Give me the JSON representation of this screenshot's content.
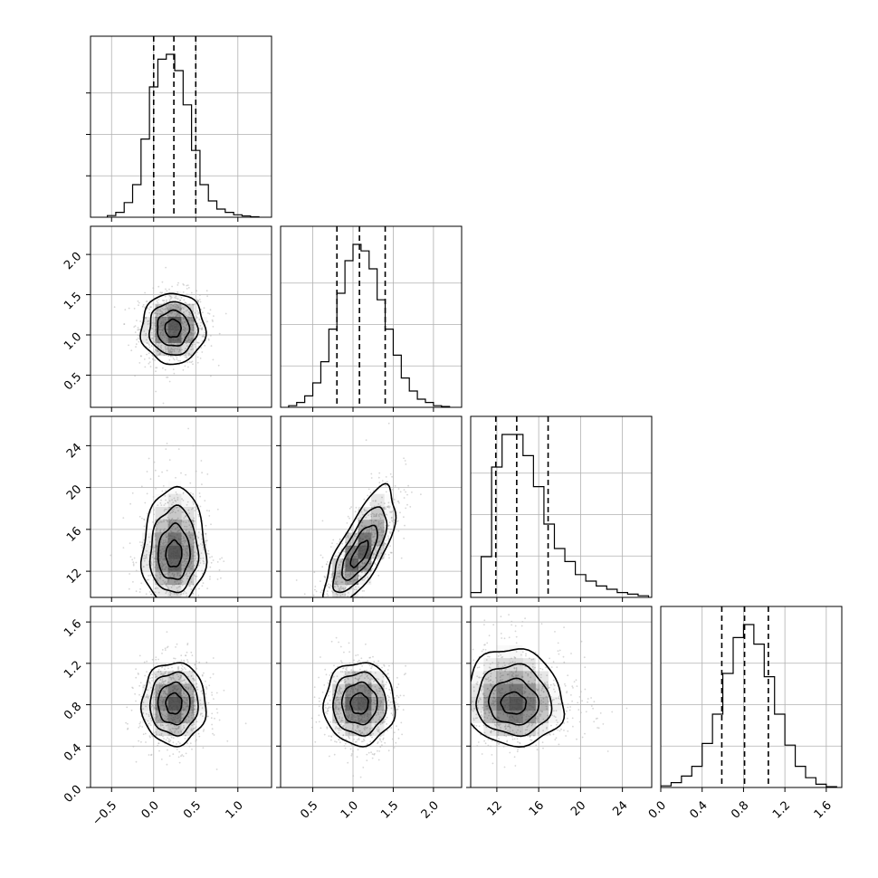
{
  "figure": {
    "kind": "corner-plot"
  },
  "chart_data": {
    "type": "corner",
    "title": "",
    "grid": true,
    "colors": {
      "line": "#000000",
      "grid": "#b0b0b0",
      "scatter": "#b4b4b4",
      "density": "#3a3a3a"
    },
    "params": [
      {
        "range": [
          -0.75,
          1.4
        ],
        "ticks": [
          -0.5,
          0.0,
          0.5,
          1.0
        ],
        "tick_labels": [
          "−0.5",
          "0.0",
          "0.5",
          "1.0"
        ],
        "quantiles": [
          0.0,
          0.24,
          0.5
        ],
        "hist_centers": [
          -0.5,
          -0.4,
          -0.3,
          -0.2,
          -0.1,
          0.0,
          0.1,
          0.2,
          0.3,
          0.4,
          0.5,
          0.6,
          0.7,
          0.8,
          0.9,
          1.0,
          1.1,
          1.2
        ],
        "hist_values": [
          0.01,
          0.03,
          0.09,
          0.2,
          0.48,
          0.8,
          0.97,
          1.0,
          0.9,
          0.69,
          0.41,
          0.2,
          0.1,
          0.05,
          0.03,
          0.015,
          0.008,
          0.003
        ]
      },
      {
        "range": [
          0.1,
          2.35
        ],
        "ticks": [
          0.5,
          1.0,
          1.5,
          2.0
        ],
        "tick_labels": [
          "0.5",
          "1.0",
          "1.5",
          "2.0"
        ],
        "quantiles": [
          0.8,
          1.08,
          1.4
        ],
        "hist_centers": [
          0.25,
          0.35,
          0.45,
          0.55,
          0.65,
          0.75,
          0.85,
          0.95,
          1.05,
          1.15,
          1.25,
          1.35,
          1.45,
          1.55,
          1.65,
          1.75,
          1.85,
          1.95,
          2.05,
          2.15
        ],
        "hist_values": [
          0.01,
          0.03,
          0.07,
          0.15,
          0.28,
          0.48,
          0.7,
          0.9,
          1.0,
          0.96,
          0.85,
          0.66,
          0.48,
          0.32,
          0.18,
          0.1,
          0.05,
          0.03,
          0.01,
          0.005
        ]
      },
      {
        "range": [
          9.5,
          26.8
        ],
        "ticks": [
          12,
          16,
          20,
          24
        ],
        "tick_labels": [
          "12",
          "16",
          "20",
          "24"
        ],
        "quantiles": [
          11.9,
          13.9,
          16.9
        ],
        "hist_centers": [
          10.0,
          11.0,
          12.0,
          13.0,
          14.0,
          15.0,
          16.0,
          17.0,
          18.0,
          19.0,
          20.0,
          21.0,
          22.0,
          23.0,
          24.0,
          25.0,
          26.0
        ],
        "hist_values": [
          0.03,
          0.25,
          0.8,
          1.0,
          1.0,
          0.87,
          0.68,
          0.45,
          0.3,
          0.22,
          0.14,
          0.1,
          0.07,
          0.05,
          0.03,
          0.02,
          0.01
        ]
      },
      {
        "range": [
          0.0,
          1.75
        ],
        "ticks": [
          0.0,
          0.4,
          0.8,
          1.2,
          1.6
        ],
        "tick_labels": [
          "0.0",
          "0.4",
          "0.8",
          "1.2",
          "1.6"
        ],
        "quantiles": [
          0.59,
          0.81,
          1.04
        ],
        "hist_centers": [
          0.05,
          0.15,
          0.25,
          0.35,
          0.45,
          0.55,
          0.65,
          0.75,
          0.85,
          0.95,
          1.05,
          1.15,
          1.25,
          1.35,
          1.45,
          1.55,
          1.65
        ],
        "hist_values": [
          0.01,
          0.03,
          0.07,
          0.13,
          0.27,
          0.45,
          0.7,
          0.92,
          1.0,
          0.88,
          0.68,
          0.45,
          0.26,
          0.13,
          0.06,
          0.02,
          0.005
        ]
      }
    ],
    "pairs": [
      {
        "row": 1,
        "col": 0,
        "center": [
          0.23,
          1.08
        ],
        "spread": [
          0.19,
          0.22
        ],
        "corr": 0.0,
        "skew": 0.0
      },
      {
        "row": 2,
        "col": 0,
        "center": [
          0.24,
          13.6
        ],
        "spread": [
          0.19,
          2.4
        ],
        "corr": 0.05,
        "skew": 0.6
      },
      {
        "row": 2,
        "col": 1,
        "center": [
          1.08,
          13.6
        ],
        "spread": [
          0.22,
          2.4
        ],
        "corr": 0.72,
        "skew": 0.6
      },
      {
        "row": 3,
        "col": 0,
        "center": [
          0.24,
          0.81
        ],
        "spread": [
          0.19,
          0.2
        ],
        "corr": 0.0,
        "skew": 0.0
      },
      {
        "row": 3,
        "col": 1,
        "center": [
          1.08,
          0.81
        ],
        "spread": [
          0.22,
          0.2
        ],
        "corr": 0.0,
        "skew": 0.0
      },
      {
        "row": 3,
        "col": 2,
        "center": [
          13.6,
          0.81
        ],
        "spread": [
          2.4,
          0.2
        ],
        "corr": -0.05,
        "skew": 0.6
      }
    ]
  }
}
